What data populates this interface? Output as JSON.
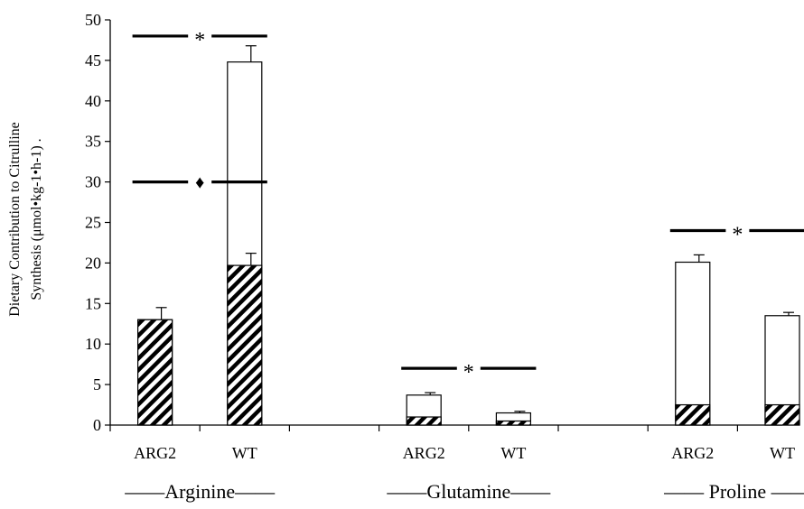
{
  "chart_data": {
    "type": "bar",
    "stacked": true,
    "ylabel_lines": [
      "Dietary Contribution to Citrulline",
      "Synthesis (μmol•kg-1•h-1) ."
    ],
    "ylim": [
      0,
      50
    ],
    "yticks": [
      0,
      5,
      10,
      15,
      20,
      25,
      30,
      35,
      40,
      45,
      50
    ],
    "groups": [
      {
        "label": "Arginine",
        "display": "——Arginine——"
      },
      {
        "label": "Glutamine",
        "display": "——Glutamine——"
      },
      {
        "label": "Proline",
        "display": "—— Proline ——"
      }
    ],
    "bars": [
      {
        "group": 0,
        "category": "ARG2",
        "hatched": 13.0,
        "total": 13.0,
        "error": 1.5
      },
      {
        "group": 0,
        "category": "WT",
        "hatched": 19.7,
        "total": 44.8,
        "error": 2.0,
        "hatched_error": 1.5
      },
      {
        "group": 1,
        "category": "ARG2",
        "hatched": 1.0,
        "total": 3.7,
        "error": 0.3
      },
      {
        "group": 1,
        "category": "WT",
        "hatched": 0.5,
        "total": 1.5,
        "error": 0.2
      },
      {
        "group": 2,
        "category": "ARG2",
        "hatched": 2.5,
        "total": 20.1,
        "error": 0.9
      },
      {
        "group": 2,
        "category": "WT",
        "hatched": 2.5,
        "total": 13.5,
        "error": 0.4
      }
    ],
    "annotations": [
      {
        "symbol": "*",
        "y": 48,
        "group": 0
      },
      {
        "symbol": "♦",
        "y": 30,
        "group": 0
      },
      {
        "symbol": "*",
        "y": 7,
        "group": 1
      },
      {
        "symbol": "*",
        "y": 24,
        "group": 2
      }
    ]
  }
}
